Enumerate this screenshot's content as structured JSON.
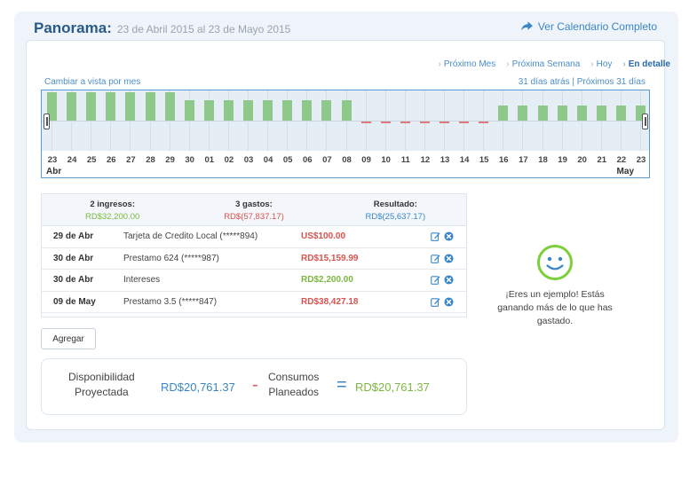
{
  "header": {
    "title": "Panorama:",
    "subtitle": "23 de Abril 2015 al 23 de Mayo 2015",
    "calendar_link": "Ver Calendario Completo"
  },
  "nav": {
    "next_month": "Próximo Mes",
    "next_week": "Próxima Semana",
    "today": "Hoy",
    "detail": "En detalle"
  },
  "view": {
    "switch_label": "Cambiar a vista por mes",
    "days_back": "31 días atrás",
    "separator": "|",
    "days_forward": "Próximos 31 días"
  },
  "timeline": {
    "days": [
      "23",
      "24",
      "25",
      "26",
      "27",
      "28",
      "29",
      "30",
      "01",
      "02",
      "03",
      "04",
      "05",
      "06",
      "07",
      "08",
      "09",
      "10",
      "11",
      "12",
      "13",
      "14",
      "15",
      "16",
      "17",
      "18",
      "19",
      "20",
      "21",
      "22",
      "23"
    ],
    "balance_state": [
      "pos",
      "pos",
      "pos",
      "pos",
      "pos",
      "pos",
      "pos",
      "pos",
      "pos",
      "pos",
      "pos",
      "pos",
      "pos",
      "pos",
      "pos",
      "pos",
      "neg",
      "neg",
      "neg",
      "neg",
      "neg",
      "neg",
      "neg",
      "pos",
      "pos",
      "pos",
      "pos",
      "pos",
      "pos",
      "pos",
      "pos"
    ],
    "bar_level": [
      0.93,
      0.93,
      0.93,
      0.93,
      0.93,
      0.93,
      0.93,
      0.67,
      0.67,
      0.67,
      0.67,
      0.67,
      0.67,
      0.67,
      0.67,
      0.67,
      0,
      0,
      0,
      0,
      0,
      0,
      0,
      0.5,
      0.5,
      0.5,
      0.5,
      0.5,
      0.5,
      0.5,
      0.5
    ],
    "month_start": "Abr",
    "month_end": "May",
    "colors": {
      "positive": "#8fc88b",
      "negative": "#e07a7a"
    }
  },
  "summary": {
    "income_label": "2 ingresos:",
    "income_value": "RD$32,200.00",
    "expense_label": "3 gastos:",
    "expense_value": "RD$(57,837.17)",
    "result_label": "Resultado:",
    "result_value": "RD$(25,637.17)"
  },
  "transactions": [
    {
      "date": "29 de Abr",
      "description": "Tarjeta de Credito Local (*****894)",
      "amount": "US$100.00",
      "type": "expense"
    },
    {
      "date": "30 de Abr",
      "description": "Prestamo 624 (*****987)",
      "amount": "RD$15,159.99",
      "type": "expense"
    },
    {
      "date": "30 de Abr",
      "description": "Intereses",
      "amount": "RD$2,200.00",
      "type": "income"
    },
    {
      "date": "09 de May",
      "description": "Prestamo 3.5 (*****847)",
      "amount": "RD$38,427.18",
      "type": "expense"
    }
  ],
  "add_button": "Agregar",
  "projection": {
    "available_label_1": "Disponibilidad",
    "available_label_2": "Proyectada",
    "available_value": "RD$20,761.37",
    "minus": "-",
    "planned_label_1": "Consumos",
    "planned_label_2": "Planeados",
    "equals": "=",
    "result_value": "RD$20,761.37"
  },
  "feedback": {
    "line1": "¡Eres un ejemplo! Estás",
    "line2": "ganando más de lo que has",
    "line3": "gastado."
  },
  "colors": {
    "blue": "#3a86c8",
    "green": "#7cb83f",
    "red": "#d9534f",
    "smiley": "#7ccf3a"
  }
}
